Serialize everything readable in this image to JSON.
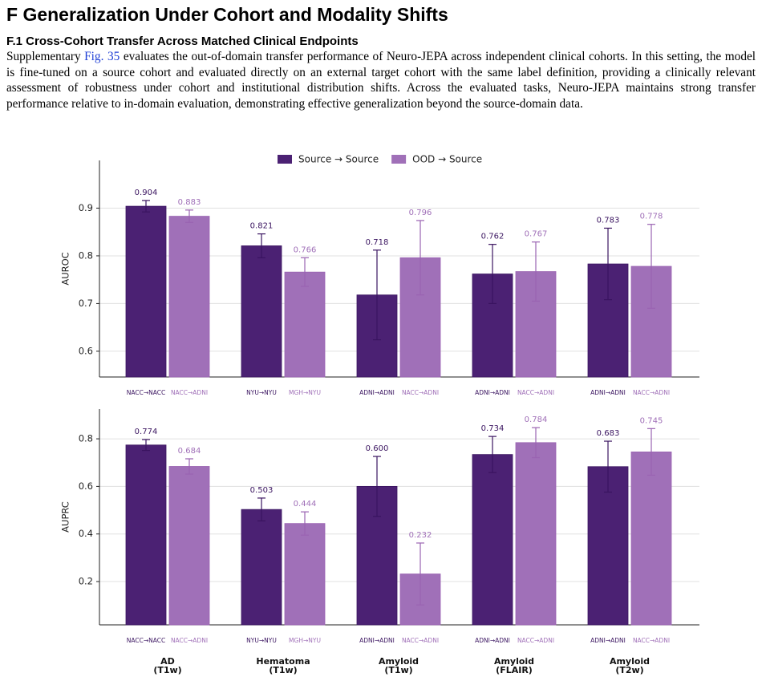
{
  "section": {
    "title": "F  Generalization Under Cohort and Modality Shifts"
  },
  "subsection": {
    "title": "F.1  Cross-Cohort Transfer Across Matched Clinical Endpoints",
    "paragraph": [
      "Supplementary ",
      "Fig. 35",
      " evaluates the out-of-domain transfer performance of Neuro-JEPA across independent clinical cohorts. In this setting, the model is fine-tuned on a source cohort and evaluated directly on an external target cohort with the same label definition, providing a clinically relevant assessment of robustness under cohort and institutional distribution shifts. Across the evaluated tasks, Neuro-JEPA maintains strong transfer performance relative to in-domain evaluation, demonstrating effective generalization beyond the source-domain data."
    ]
  },
  "chart_data": [
    {
      "type": "bar",
      "ylabel": "AUROC",
      "legend": "top",
      "grid": true,
      "ylim": [
        0.546,
        1.0
      ],
      "yticks": [
        0.6,
        0.7,
        0.8,
        0.9
      ],
      "series": [
        {
          "name": "Source → Source",
          "color": "#4b2173",
          "values": [
            0.904,
            0.821,
            0.718,
            0.762,
            0.783
          ],
          "value_labels": [
            "0.904",
            "0.821",
            "0.718",
            "0.762",
            "0.783"
          ],
          "errors": [
            0.012,
            0.025,
            0.094,
            0.062,
            0.075
          ],
          "bar_labels": [
            "NACC→NACC",
            "NYU→NYU",
            "ADNI→ADNI",
            "ADNI→ADNI",
            "ADNI→ADNI"
          ]
        },
        {
          "name": "OOD → Source",
          "color": "#a070b8",
          "values": [
            0.883,
            0.766,
            0.796,
            0.767,
            0.778
          ],
          "value_labels": [
            "0.883",
            "0.766",
            "0.796",
            "0.767",
            "0.778"
          ],
          "errors": [
            0.013,
            0.03,
            0.078,
            0.062,
            0.088
          ],
          "bar_labels": [
            "NACC→ADNI",
            "MGH→NYU",
            "NACC→ADNI",
            "NACC→ADNI",
            "NACC→ADNI"
          ]
        }
      ]
    },
    {
      "type": "bar",
      "ylabel": "AUPRC",
      "grid": true,
      "categories": [
        "AD\n(T1w)",
        "Hematoma\n(T1w)",
        "Amyloid\n(T1w)",
        "Amyloid\n(FLAIR)",
        "Amyloid\n(T2w)"
      ],
      "ylim": [
        0.018,
        0.925
      ],
      "yticks": [
        0.2,
        0.4,
        0.6,
        0.8
      ],
      "series": [
        {
          "color": "#4b2173",
          "values": [
            0.774,
            0.503,
            0.6,
            0.734,
            0.683
          ],
          "value_labels": [
            "0.774",
            "0.503",
            "0.600",
            "0.734",
            "0.683"
          ],
          "errors": [
            0.023,
            0.048,
            0.126,
            0.076,
            0.107
          ],
          "bar_labels": [
            "NACC→NACC",
            "NYU→NYU",
            "ADNI→ADNI",
            "ADNI→ADNI",
            "ADNI→ADNI"
          ]
        },
        {
          "color": "#a070b8",
          "values": [
            0.684,
            0.444,
            0.232,
            0.784,
            0.745
          ],
          "value_labels": [
            "0.684",
            "0.444",
            "0.232",
            "0.784",
            "0.745"
          ],
          "errors": [
            0.032,
            0.049,
            0.13,
            0.063,
            0.098
          ],
          "bar_labels": [
            "NACC→ADNI",
            "MGH→NYU",
            "NACC→ADNI",
            "NACC→ADNI",
            "NACC→ADNI"
          ]
        }
      ]
    }
  ]
}
